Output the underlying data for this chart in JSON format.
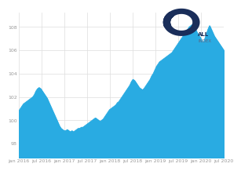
{
  "title": "",
  "x_ticks": [
    "jan 2016",
    "jul 2016",
    "jan 2017",
    "jul 2017",
    "jan 2018",
    "jul 2018",
    "jan 2019",
    "jul 2019",
    "jan 2020",
    "jul 2020"
  ],
  "y_ticks": [
    98,
    100,
    102,
    104,
    106,
    108
  ],
  "ylim": [
    96.8,
    109.2
  ],
  "xlim": [
    0,
    54
  ],
  "fill_color": "#29ABE2",
  "line_color": "#29ABE2",
  "background_color": "#ffffff",
  "grid_color": "#dddddd",
  "tick_color": "#999999",
  "tick_fontsize": 4.5,
  "series": [
    100.8,
    101.0,
    101.2,
    101.4,
    101.5,
    101.6,
    101.7,
    101.8,
    101.9,
    102.0,
    102.2,
    102.5,
    102.7,
    102.8,
    102.7,
    102.5,
    102.3,
    102.1,
    101.9,
    101.6,
    101.3,
    101.0,
    100.7,
    100.4,
    100.1,
    99.8,
    99.5,
    99.3,
    99.2,
    99.1,
    99.1,
    99.2,
    99.1,
    99.0,
    99.1,
    99.0,
    99.1,
    99.2,
    99.3,
    99.3,
    99.4,
    99.4,
    99.5,
    99.6,
    99.7,
    99.8,
    99.9,
    100.0,
    100.1,
    100.2,
    100.1,
    100.0,
    99.9,
    100.0,
    100.1,
    100.3,
    100.5,
    100.7,
    100.9,
    101.0,
    101.1,
    101.2,
    101.3,
    101.5,
    101.6,
    101.8,
    102.0,
    102.2,
    102.4,
    102.6,
    102.8,
    103.0,
    103.3,
    103.5,
    103.4,
    103.2,
    103.0,
    102.8,
    102.7,
    102.6,
    102.7,
    102.9,
    103.1,
    103.3,
    103.5,
    103.8,
    104.0,
    104.3,
    104.6,
    104.8,
    105.0,
    105.1,
    105.2,
    105.3,
    105.4,
    105.5,
    105.6,
    105.7,
    105.8,
    106.0,
    106.2,
    106.4,
    106.6,
    106.8,
    107.0,
    107.2,
    107.4,
    107.6,
    107.8,
    108.0,
    108.1,
    108.2,
    108.1,
    107.8,
    107.5,
    107.3,
    107.1,
    106.8,
    106.6,
    107.0,
    107.4,
    107.8,
    108.1,
    107.8,
    107.5,
    107.2,
    107.0,
    106.8,
    106.6,
    106.4,
    106.2,
    106.0
  ]
}
